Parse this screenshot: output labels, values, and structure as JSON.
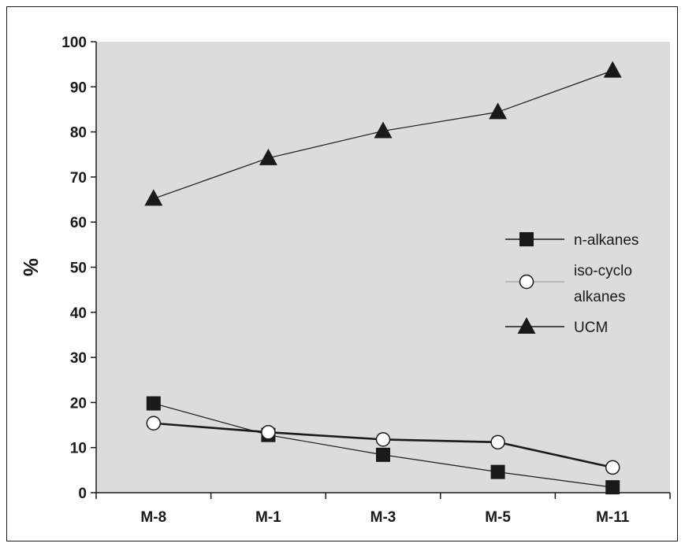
{
  "chart_data": {
    "type": "line",
    "title": "",
    "xlabel": "",
    "ylabel": "%",
    "categories": [
      "M-8",
      "M-1",
      "M-3",
      "M-5",
      "M-11"
    ],
    "ylim": [
      0,
      100
    ],
    "yticks": [
      "0",
      "10",
      "20",
      "30",
      "40",
      "50",
      "60",
      "70",
      "80",
      "90",
      "100"
    ],
    "grid": false,
    "legend_position": "right",
    "plot_background": "#dcdcdc",
    "series": [
      {
        "name": "n-alkanes",
        "marker": "square-filled",
        "values": [
          19.8,
          12.8,
          8.4,
          4.6,
          1.2
        ]
      },
      {
        "name": "iso-cyclo alkanes",
        "name_lines": [
          "iso-cyclo",
          "alkanes"
        ],
        "marker": "circle-open",
        "values": [
          15.4,
          13.4,
          11.8,
          11.2,
          5.6
        ]
      },
      {
        "name": "UCM",
        "marker": "triangle-filled",
        "values": [
          65.2,
          74.2,
          80.2,
          84.4,
          93.6
        ]
      }
    ]
  }
}
